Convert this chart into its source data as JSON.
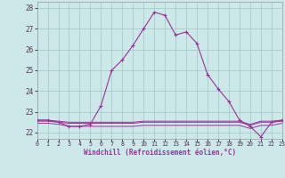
{
  "xlabel": "Windchill (Refroidissement éolien,°C)",
  "bg_color": "#cce8e8",
  "grid_color": "#aacccc",
  "line_color": "#993399",
  "ylim": [
    21.7,
    28.3
  ],
  "xlim": [
    0,
    23
  ],
  "yticks": [
    22,
    23,
    24,
    25,
    26,
    27,
    28
  ],
  "xticks": [
    0,
    1,
    2,
    3,
    4,
    5,
    6,
    7,
    8,
    9,
    10,
    11,
    12,
    13,
    14,
    15,
    16,
    17,
    18,
    19,
    20,
    21,
    22,
    23
  ],
  "main_line": [
    22.6,
    22.6,
    22.5,
    22.3,
    22.3,
    22.4,
    23.3,
    25.0,
    25.5,
    26.2,
    27.0,
    27.8,
    27.65,
    26.7,
    26.85,
    26.3,
    24.8,
    24.1,
    23.5,
    22.6,
    22.3,
    21.8,
    22.5,
    22.6
  ],
  "line2": [
    22.55,
    22.55,
    22.5,
    22.45,
    22.45,
    22.45,
    22.45,
    22.45,
    22.45,
    22.45,
    22.5,
    22.5,
    22.5,
    22.5,
    22.5,
    22.5,
    22.5,
    22.5,
    22.5,
    22.5,
    22.35,
    22.5,
    22.5,
    22.55
  ],
  "line3": [
    22.45,
    22.45,
    22.4,
    22.3,
    22.3,
    22.3,
    22.3,
    22.3,
    22.3,
    22.3,
    22.35,
    22.35,
    22.35,
    22.35,
    22.35,
    22.35,
    22.35,
    22.35,
    22.35,
    22.35,
    22.2,
    22.35,
    22.35,
    22.45
  ],
  "line4": [
    22.6,
    22.6,
    22.55,
    22.5,
    22.5,
    22.5,
    22.5,
    22.5,
    22.5,
    22.5,
    22.55,
    22.55,
    22.55,
    22.55,
    22.55,
    22.55,
    22.55,
    22.55,
    22.55,
    22.55,
    22.4,
    22.55,
    22.55,
    22.6
  ]
}
